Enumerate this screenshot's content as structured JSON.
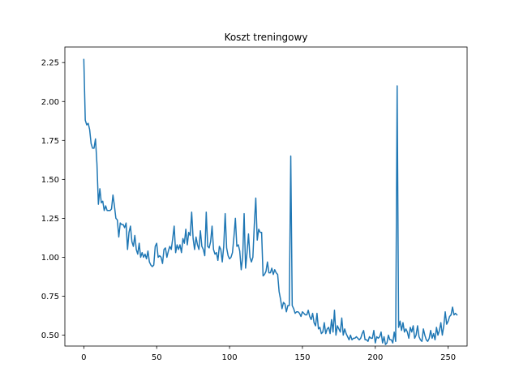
{
  "chart_data": {
    "type": "line",
    "title": "Koszt treningowy",
    "xlabel": "",
    "ylabel": "",
    "xlim": [
      -13,
      263
    ],
    "ylim": [
      0.43,
      2.35
    ],
    "xticks": [
      0,
      50,
      100,
      150,
      200,
      250
    ],
    "xtick_labels": [
      "0",
      "50",
      "100",
      "150",
      "200",
      "250"
    ],
    "yticks": [
      0.5,
      0.75,
      1.0,
      1.25,
      1.5,
      1.75,
      2.0,
      2.25
    ],
    "ytick_labels": [
      "0.50",
      "0.75",
      "1.00",
      "1.25",
      "1.50",
      "1.75",
      "2.00",
      "2.25"
    ],
    "grid": false,
    "line_color": "#1f77b4",
    "series": [
      {
        "values": [
          2.27,
          1.88,
          1.85,
          1.86,
          1.82,
          1.73,
          1.7,
          1.7,
          1.76,
          1.6,
          1.34,
          1.44,
          1.35,
          1.36,
          1.3,
          1.33,
          1.3,
          1.3,
          1.3,
          1.31,
          1.4,
          1.33,
          1.25,
          1.24,
          1.13,
          1.22,
          1.21,
          1.21,
          1.19,
          1.22,
          1.05,
          1.16,
          1.2,
          1.1,
          1.07,
          1.14,
          1.05,
          1.02,
          1.09,
          1.0,
          1.03,
          1.0,
          1.02,
          0.99,
          1.04,
          0.97,
          0.95,
          0.94,
          0.95,
          1.07,
          1.09,
          1.0,
          1.01,
          1.0,
          0.96,
          1.05,
          1.06,
          1.0,
          1.04,
          1.07,
          1.05,
          1.12,
          1.2,
          1.03,
          1.08,
          1.05,
          1.08,
          1.03,
          1.12,
          1.09,
          1.18,
          1.08,
          1.16,
          1.14,
          1.29,
          1.12,
          1.05,
          1.13,
          1.08,
          1.05,
          1.17,
          1.07,
          1.05,
          1.01,
          1.29,
          1.07,
          1.06,
          1.1,
          1.2,
          1.05,
          1.02,
          1.03,
          0.98,
          1.07,
          1.05,
          0.97,
          1.07,
          1.28,
          1.06,
          1.01,
          0.99,
          1.0,
          1.03,
          1.13,
          1.25,
          1.07,
          1.08,
          1.04,
          0.92,
          1.0,
          1.28,
          0.93,
          1.03,
          1.15,
          1.0,
          0.97,
          1.0,
          1.21,
          1.38,
          1.11,
          1.18,
          1.16,
          1.16,
          0.88,
          0.89,
          0.91,
          0.97,
          0.9,
          0.9,
          0.93,
          0.89,
          0.92,
          0.9,
          0.89,
          0.78,
          0.73,
          0.67,
          0.71,
          0.7,
          0.65,
          0.69,
          0.69,
          1.65,
          0.69,
          0.67,
          0.64,
          0.65,
          0.65,
          0.64,
          0.62,
          0.65,
          0.64,
          0.63,
          0.63,
          0.66,
          0.62,
          0.6,
          0.64,
          0.58,
          0.56,
          0.64,
          0.54,
          0.55,
          0.51,
          0.52,
          0.58,
          0.51,
          0.54,
          0.55,
          0.51,
          0.6,
          0.52,
          0.66,
          0.5,
          0.56,
          0.54,
          0.52,
          0.61,
          0.5,
          0.54,
          0.51,
          0.49,
          0.47,
          0.5,
          0.47,
          0.48,
          0.48,
          0.49,
          0.48,
          0.47,
          0.48,
          0.51,
          0.53,
          0.47,
          0.47,
          0.46,
          0.49,
          0.48,
          0.48,
          0.53,
          0.45,
          0.49,
          0.48,
          0.49,
          0.52,
          0.45,
          0.49,
          0.44,
          0.45,
          0.5,
          0.47,
          0.47,
          0.45,
          0.52,
          0.46,
          2.1,
          0.55,
          0.59,
          0.53,
          0.58,
          0.52,
          0.54,
          0.52,
          0.48,
          0.55,
          0.52,
          0.56,
          0.48,
          0.5,
          0.56,
          0.49,
          0.47,
          0.46,
          0.54,
          0.5,
          0.47,
          0.46,
          0.48,
          0.53,
          0.48,
          0.51,
          0.47,
          0.55,
          0.5,
          0.53,
          0.58,
          0.5,
          0.56,
          0.65,
          0.57,
          0.59,
          0.62,
          0.63,
          0.68,
          0.63,
          0.64,
          0.63
        ]
      }
    ]
  }
}
